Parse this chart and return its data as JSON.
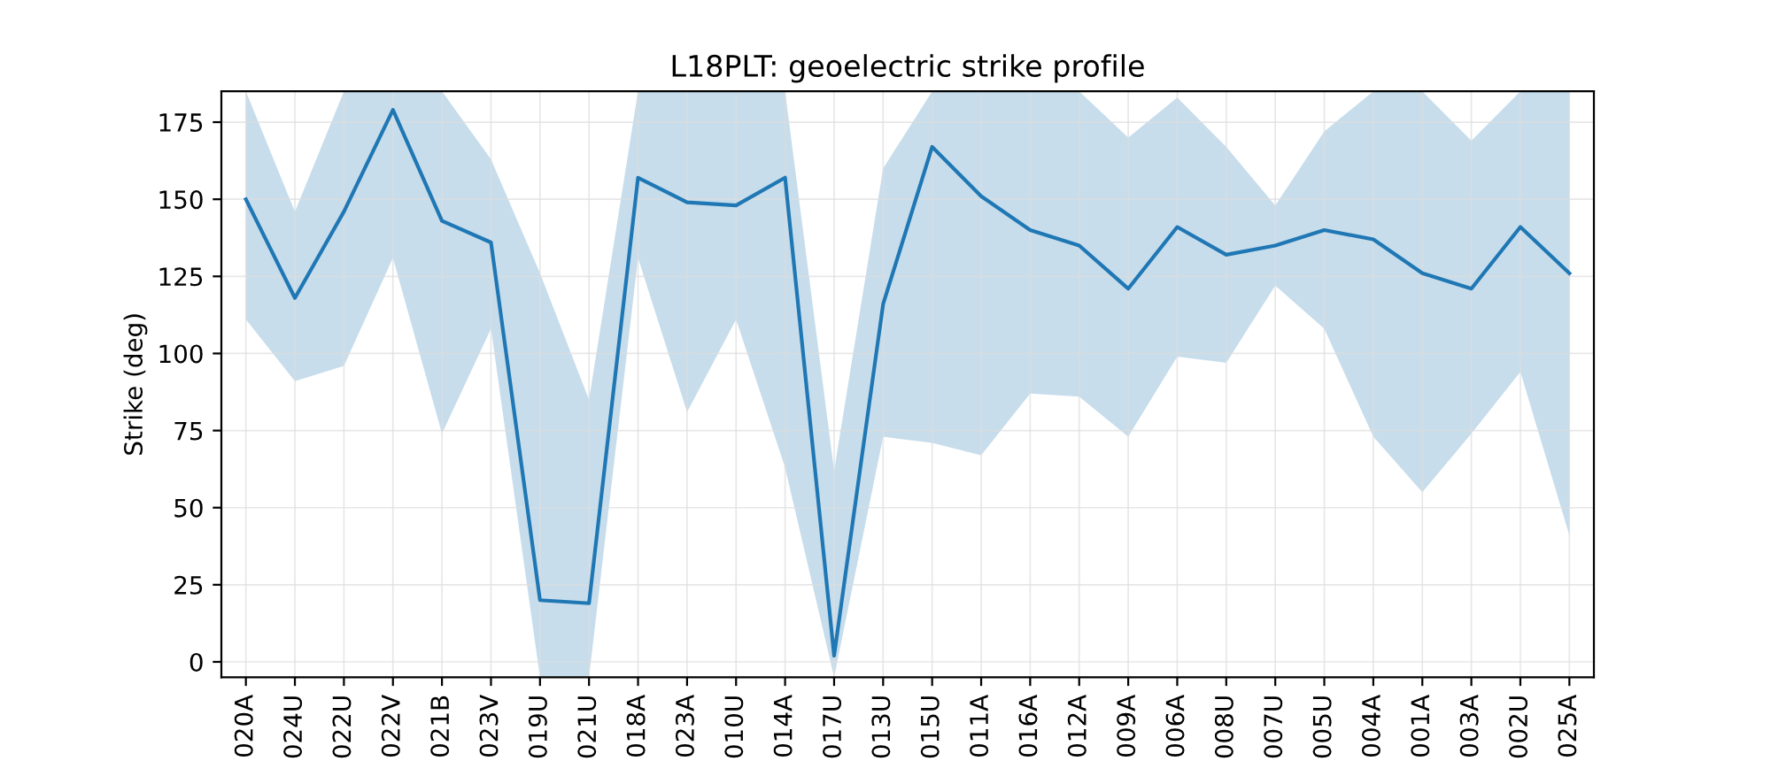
{
  "chart_data": {
    "type": "line",
    "title": "L18PLT: geoelectric strike profile",
    "ylabel": "Strike (deg)",
    "categories": [
      "020A",
      "024U",
      "022U",
      "022V",
      "021B",
      "023V",
      "019U",
      "021U",
      "018A",
      "023A",
      "010U",
      "014A",
      "017U",
      "013U",
      "015U",
      "011A",
      "016A",
      "012A",
      "009A",
      "006A",
      "008U",
      "007U",
      "005U",
      "004A",
      "001A",
      "003A",
      "002U",
      "025A"
    ],
    "series": [
      {
        "color": "#1f77b4",
        "values": [
          150,
          118,
          146,
          179,
          143,
          136,
          20,
          19,
          157,
          149,
          148,
          157,
          2,
          116,
          167,
          151,
          140,
          135,
          121,
          141,
          132,
          135,
          140,
          137,
          126,
          121,
          141,
          126
        ],
        "lower": [
          111,
          91,
          96,
          131,
          74,
          108,
          -5,
          -5,
          131,
          81,
          111,
          63,
          -5,
          73,
          71,
          67,
          87,
          86,
          73,
          99,
          97,
          122,
          108,
          73,
          55,
          74,
          94,
          41
        ],
        "upper": [
          185,
          146,
          185,
          185,
          185,
          163,
          126,
          85,
          185,
          185,
          185,
          185,
          62,
          160,
          185,
          185,
          185,
          185,
          170,
          183,
          167,
          148,
          172,
          185,
          185,
          169,
          185,
          185
        ]
      }
    ],
    "ylim": [
      -5,
      185
    ],
    "yticks": [
      0,
      25,
      50,
      75,
      100,
      125,
      150,
      175
    ],
    "grid": true
  }
}
